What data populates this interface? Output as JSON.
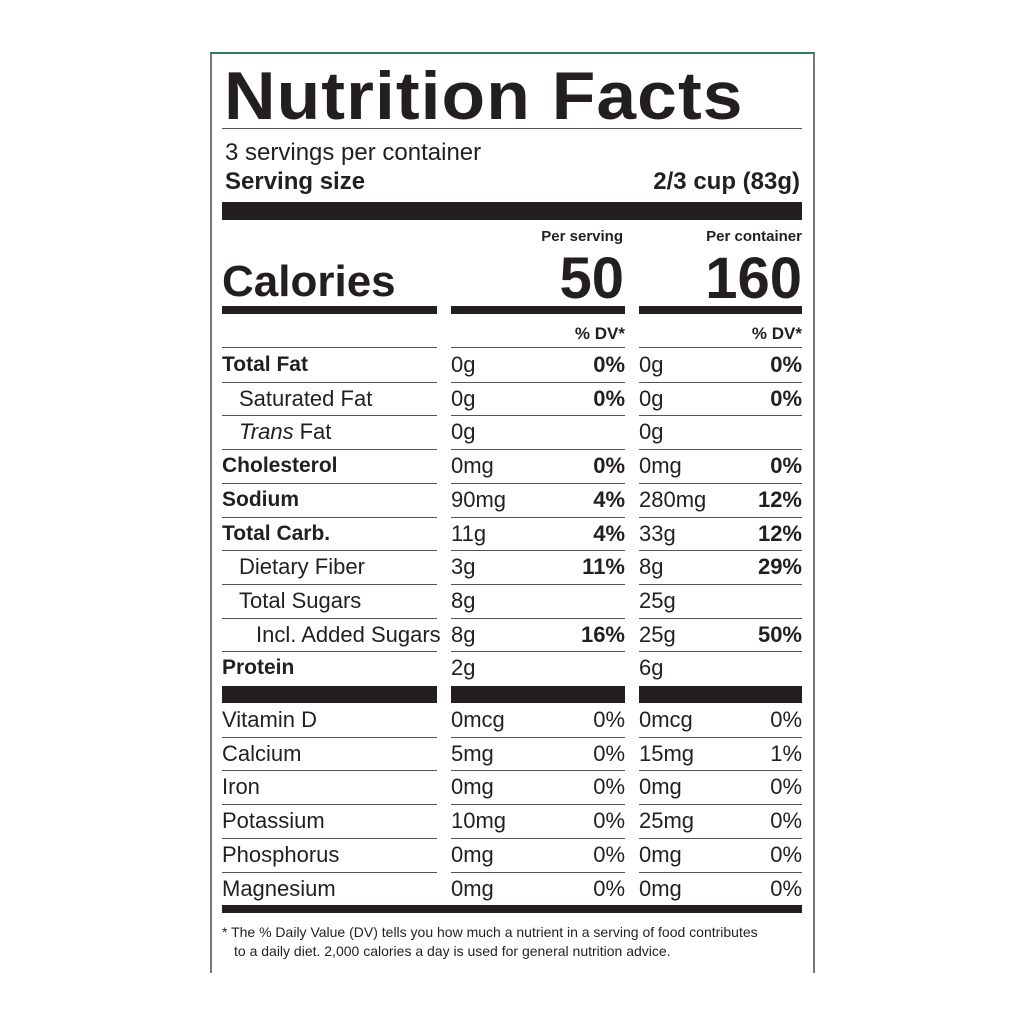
{
  "title": "Nutrition Facts",
  "servings": "3 servings per container",
  "serving_size": {
    "label": "Serving size",
    "value": "2/3 cup (83g)"
  },
  "calories": {
    "label": "Calories",
    "per_serving_label": "Per serving",
    "per_serving": "50",
    "per_container_label": "Per container",
    "per_container": "160"
  },
  "dv_headers": [
    "% DV*",
    "% DV*"
  ],
  "nutrients": [
    {
      "name": "Total Fat",
      "level": 0,
      "serving_amount": "0g",
      "serving_dv": "0%",
      "container_amount": "0g",
      "container_dv": "0%"
    },
    {
      "name": "Saturated Fat",
      "level": 1,
      "serving_amount": "0g",
      "serving_dv": "0%",
      "container_amount": "0g",
      "container_dv": "0%"
    },
    {
      "name_italic": "Trans",
      "name": "Fat",
      "level": 1,
      "serving_amount": "0g",
      "container_amount": "0g"
    },
    {
      "name": "Cholesterol",
      "level": 0,
      "serving_amount": "0mg",
      "serving_dv": "0%",
      "container_amount": "0mg",
      "container_dv": "0%"
    },
    {
      "name": "Sodium",
      "level": 0,
      "serving_amount": "90mg",
      "serving_dv": "4%",
      "container_amount": "280mg",
      "container_dv": "12%"
    },
    {
      "name": "Total Carb.",
      "level": 0,
      "serving_amount": "11g",
      "serving_dv": "4%",
      "container_amount": "33g",
      "container_dv": "12%"
    },
    {
      "name": "Dietary Fiber",
      "level": 1,
      "serving_amount": "3g",
      "serving_dv": "11%",
      "container_amount": "8g",
      "container_dv": "29%"
    },
    {
      "name": "Total Sugars",
      "level": 1,
      "serving_amount": "8g",
      "container_amount": "25g"
    },
    {
      "name": "Incl. Added Sugars",
      "level": 2,
      "serving_amount": "8g",
      "serving_dv": "16%",
      "container_amount": "25g",
      "container_dv": "50%"
    },
    {
      "name": "Protein",
      "level": 0,
      "serving_amount": "2g",
      "container_amount": "6g"
    }
  ],
  "vitamins": [
    {
      "name": "Vitamin D",
      "serving_amount": "0mcg",
      "serving_dv": "0%",
      "container_amount": "0mcg",
      "container_dv": "0%"
    },
    {
      "name": "Calcium",
      "serving_amount": "5mg",
      "serving_dv": "0%",
      "container_amount": "15mg",
      "container_dv": "1%"
    },
    {
      "name": "Iron",
      "serving_amount": "0mg",
      "serving_dv": "0%",
      "container_amount": "0mg",
      "container_dv": "0%"
    },
    {
      "name": "Potassium",
      "serving_amount": "10mg",
      "serving_dv": "0%",
      "container_amount": "25mg",
      "container_dv": "0%"
    },
    {
      "name": "Phosphorus",
      "serving_amount": "0mg",
      "serving_dv": "0%",
      "container_amount": "0mg",
      "container_dv": "0%"
    },
    {
      "name": "Magnesium",
      "serving_amount": "0mg",
      "serving_dv": "0%",
      "container_amount": "0mg",
      "container_dv": "0%"
    }
  ],
  "footnote": [
    "* The % Daily Value (DV) tells you how much a nutrient in a serving of food contributes",
    "to a daily diet. 2,000 calories a day is used for general nutrition advice."
  ]
}
